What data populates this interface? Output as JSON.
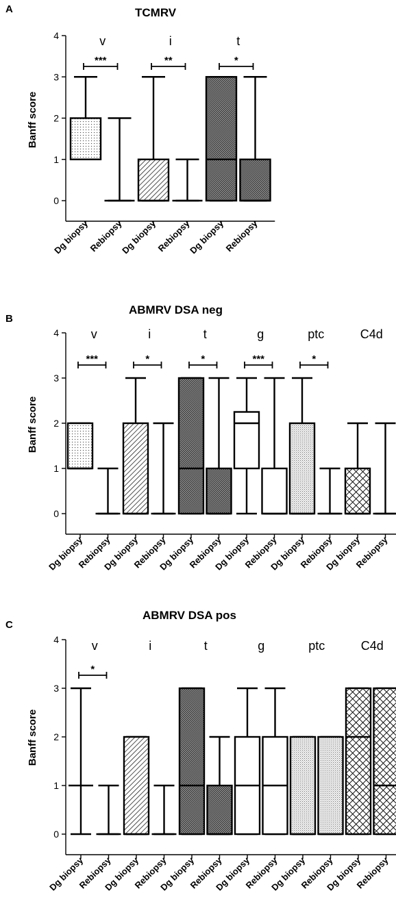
{
  "chart_data": [
    {
      "type": "box",
      "panel": "A",
      "title": "TCMRV",
      "ylabel": "Banff  score",
      "ylim": [
        0,
        4
      ],
      "yticks": [
        0,
        1,
        2,
        3,
        4
      ],
      "categories": [
        "Dg biopsy",
        "Rebiopsy",
        "Dg biopsy",
        "Rebiopsy",
        "Dg biopsy",
        "Rebiopsy"
      ],
      "groups": [
        {
          "label": "v",
          "boxes": [
            0,
            1
          ]
        },
        {
          "label": "i",
          "boxes": [
            2,
            3
          ]
        },
        {
          "label": "t",
          "boxes": [
            4,
            5
          ]
        }
      ],
      "boxes": [
        {
          "min": 1,
          "q1": 1,
          "median": 1,
          "q3": 2,
          "max": 3,
          "fill": "dots"
        },
        {
          "min": 0,
          "q1": 0,
          "median": 0,
          "q3": 0,
          "max": 2,
          "fill": "none"
        },
        {
          "min": 0,
          "q1": 0,
          "median": 0,
          "q3": 1,
          "max": 3,
          "fill": "diag"
        },
        {
          "min": 0,
          "q1": 0,
          "median": 0,
          "q3": 0,
          "max": 1,
          "fill": "none"
        },
        {
          "min": 0,
          "q1": 0,
          "median": 1,
          "q3": 3,
          "max": 3,
          "fill": "dense"
        },
        {
          "min": 0,
          "q1": 0,
          "median": 0,
          "q3": 1,
          "max": 3,
          "fill": "dense"
        }
      ],
      "significance": [
        {
          "from": 0,
          "to": 1,
          "label": "***"
        },
        {
          "from": 2,
          "to": 3,
          "label": "**"
        },
        {
          "from": 4,
          "to": 5,
          "label": "*"
        }
      ]
    },
    {
      "type": "box",
      "panel": "B",
      "title": "ABMRV DSA neg",
      "ylabel": "Banff  score",
      "ylim": [
        0,
        4
      ],
      "yticks": [
        0,
        1,
        2,
        3,
        4
      ],
      "categories": [
        "Dg biopsy",
        "Rebiopsy",
        "Dg biopsy",
        "Rebiopsy",
        "Dg biopsy",
        "Rebiopsy",
        "Dg biopsy",
        "Rebiopsy",
        "Dg biopsy",
        "Rebiopsy",
        "Dg biopsy",
        "Rebiopsy"
      ],
      "groups": [
        {
          "label": "v",
          "boxes": [
            0,
            1
          ]
        },
        {
          "label": "i",
          "boxes": [
            2,
            3
          ]
        },
        {
          "label": "t",
          "boxes": [
            4,
            5
          ]
        },
        {
          "label": "g",
          "boxes": [
            6,
            7
          ]
        },
        {
          "label": "ptc",
          "boxes": [
            8,
            9
          ]
        },
        {
          "label": "C4d",
          "boxes": [
            10,
            11
          ]
        }
      ],
      "boxes": [
        {
          "min": 1,
          "q1": 1,
          "median": 1,
          "q3": 2,
          "max": 2,
          "fill": "dots"
        },
        {
          "min": 0,
          "q1": 0,
          "median": 0,
          "q3": 0,
          "max": 1,
          "fill": "none"
        },
        {
          "min": 0,
          "q1": 0,
          "median": 0,
          "q3": 2,
          "max": 3,
          "fill": "diag"
        },
        {
          "min": 0,
          "q1": 0,
          "median": 0,
          "q3": 0,
          "max": 2,
          "fill": "none"
        },
        {
          "min": 0,
          "q1": 0,
          "median": 1,
          "q3": 3,
          "max": 3,
          "fill": "dense"
        },
        {
          "min": 0,
          "q1": 0,
          "median": 0,
          "q3": 1,
          "max": 3,
          "fill": "dense"
        },
        {
          "min": 0,
          "q1": 1,
          "median": 2,
          "q3": 2.25,
          "max": 3,
          "fill": "white"
        },
        {
          "min": 0,
          "q1": 0,
          "median": 0,
          "q3": 1,
          "max": 3,
          "fill": "white"
        },
        {
          "min": 0,
          "q1": 0,
          "median": 0,
          "q3": 2,
          "max": 3,
          "fill": "fine"
        },
        {
          "min": 0,
          "q1": 0,
          "median": 0,
          "q3": 0,
          "max": 1,
          "fill": "none"
        },
        {
          "min": 0,
          "q1": 0,
          "median": 0,
          "q3": 1,
          "max": 2,
          "fill": "cross"
        },
        {
          "min": 0,
          "q1": 0,
          "median": 0,
          "q3": 0,
          "max": 2,
          "fill": "none"
        }
      ],
      "significance": [
        {
          "from": 0,
          "to": 1,
          "label": "***"
        },
        {
          "from": 2,
          "to": 3,
          "label": "*"
        },
        {
          "from": 4,
          "to": 5,
          "label": "*"
        },
        {
          "from": 6,
          "to": 7,
          "label": "***"
        },
        {
          "from": 8,
          "to": 9,
          "label": "*"
        }
      ]
    },
    {
      "type": "box",
      "panel": "C",
      "title": "ABMRV DSA pos",
      "ylabel": "Banff score",
      "ylim": [
        0,
        4
      ],
      "yticks": [
        0,
        1,
        2,
        3,
        4
      ],
      "categories": [
        "Dg biopsy",
        "Rebiopsy",
        "Dg biopsy",
        "Rebiopsy",
        "Dg biopsy",
        "Rebiopsy",
        "Dg biopsy",
        "Rebiopsy",
        "Dg biopsy",
        "Rebiopsy",
        "Dg biopsy",
        "Rebiopsy"
      ],
      "groups": [
        {
          "label": "v",
          "boxes": [
            0,
            1
          ]
        },
        {
          "label": "i",
          "boxes": [
            2,
            3
          ]
        },
        {
          "label": "t",
          "boxes": [
            4,
            5
          ]
        },
        {
          "label": "g",
          "boxes": [
            6,
            7
          ]
        },
        {
          "label": "ptc",
          "boxes": [
            8,
            9
          ]
        },
        {
          "label": "C4d",
          "boxes": [
            10,
            11
          ]
        }
      ],
      "boxes": [
        {
          "min": 0,
          "q1": 1,
          "median": 1,
          "q3": 1,
          "max": 3,
          "fill": "none"
        },
        {
          "min": 0,
          "q1": 0,
          "median": 0,
          "q3": 0,
          "max": 1,
          "fill": "none"
        },
        {
          "min": 0,
          "q1": 0,
          "median": 0,
          "q3": 2,
          "max": 2,
          "fill": "diag"
        },
        {
          "min": 0,
          "q1": 0,
          "median": 0,
          "q3": 0,
          "max": 1,
          "fill": "none"
        },
        {
          "min": 0,
          "q1": 0,
          "median": 1,
          "q3": 3,
          "max": 3,
          "fill": "dense"
        },
        {
          "min": 0,
          "q1": 0,
          "median": 0,
          "q3": 1,
          "max": 2,
          "fill": "dense"
        },
        {
          "min": 0,
          "q1": 0,
          "median": 1,
          "q3": 2,
          "max": 3,
          "fill": "white"
        },
        {
          "min": 0,
          "q1": 0,
          "median": 1,
          "q3": 2,
          "max": 3,
          "fill": "white"
        },
        {
          "min": 0,
          "q1": 0,
          "median": 0,
          "q3": 2,
          "max": 2,
          "fill": "fine"
        },
        {
          "min": 0,
          "q1": 0,
          "median": 0,
          "q3": 2,
          "max": 2,
          "fill": "fine"
        },
        {
          "min": 0,
          "q1": 0,
          "median": 2,
          "q3": 3,
          "max": 3,
          "fill": "cross"
        },
        {
          "min": 0,
          "q1": 0,
          "median": 1,
          "q3": 3,
          "max": 3,
          "fill": "cross"
        }
      ],
      "significance": [
        {
          "from": 0,
          "to": 1,
          "label": "*"
        }
      ]
    }
  ]
}
